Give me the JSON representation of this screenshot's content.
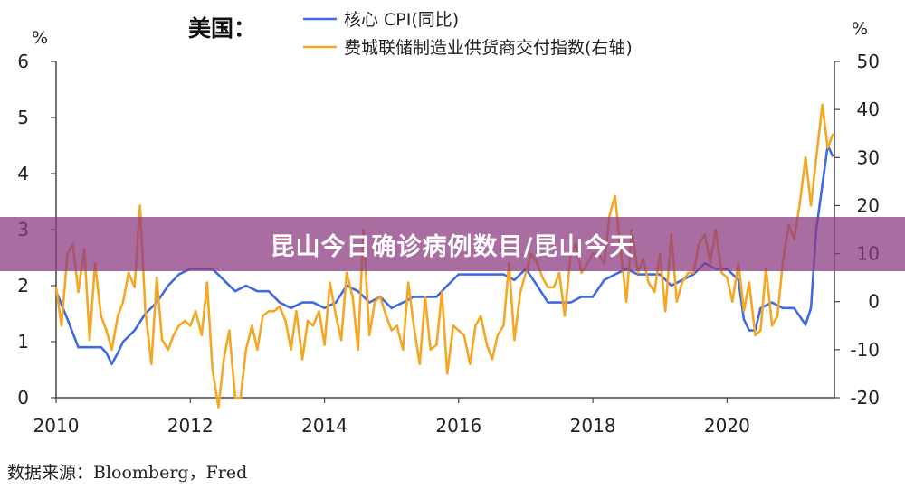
{
  "banner": {
    "title": "昆山今日确诊病例数目/昆山今天"
  },
  "source": "数据来源：Bloomberg，Fred",
  "chart_data": {
    "type": "line",
    "title": "美国：",
    "left_unit": "%",
    "right_unit": "%",
    "left_ylim": [
      0,
      6
    ],
    "left_yticks": [
      "0",
      "1",
      "2",
      "3",
      "4",
      "5",
      "6"
    ],
    "right_ylim": [
      -20,
      50
    ],
    "right_yticks": [
      "-20",
      "-10",
      "0",
      "10",
      "20",
      "30",
      "40",
      "50"
    ],
    "xlim": [
      2010,
      2021.6
    ],
    "xticks": [
      "2010",
      "2012",
      "2014",
      "2016",
      "2018",
      "2020"
    ],
    "grid": false,
    "legend_position": "top",
    "series": [
      {
        "name": "核心 CPI(同比)",
        "axis": "left",
        "color": "#4169E1",
        "x": [
          2010.0,
          2010.17,
          2010.33,
          2010.5,
          2010.67,
          2010.75,
          2010.83,
          2010.92,
          2011.0,
          2011.17,
          2011.33,
          2011.5,
          2011.67,
          2011.83,
          2012.0,
          2012.17,
          2012.33,
          2012.5,
          2012.67,
          2012.83,
          2013.0,
          2013.17,
          2013.33,
          2013.5,
          2013.67,
          2013.83,
          2014.0,
          2014.17,
          2014.33,
          2014.5,
          2014.67,
          2014.83,
          2015.0,
          2015.17,
          2015.33,
          2015.5,
          2015.67,
          2015.83,
          2016.0,
          2016.17,
          2016.33,
          2016.5,
          2016.67,
          2016.83,
          2017.0,
          2017.17,
          2017.33,
          2017.5,
          2017.67,
          2017.83,
          2018.0,
          2018.17,
          2018.33,
          2018.5,
          2018.67,
          2018.83,
          2019.0,
          2019.17,
          2019.33,
          2019.5,
          2019.67,
          2019.83,
          2020.0,
          2020.17,
          2020.25,
          2020.33,
          2020.42,
          2020.5,
          2020.67,
          2020.83,
          2021.0,
          2021.17,
          2021.25,
          2021.33,
          2021.42,
          2021.5,
          2021.58
        ],
        "values": [
          1.9,
          1.4,
          0.9,
          0.9,
          0.9,
          0.8,
          0.6,
          0.8,
          1.0,
          1.2,
          1.5,
          1.7,
          2.0,
          2.2,
          2.3,
          2.3,
          2.3,
          2.1,
          1.9,
          2.0,
          1.9,
          1.9,
          1.7,
          1.6,
          1.7,
          1.7,
          1.6,
          1.7,
          2.0,
          1.9,
          1.7,
          1.8,
          1.6,
          1.7,
          1.8,
          1.8,
          1.8,
          2.0,
          2.2,
          2.2,
          2.2,
          2.2,
          2.2,
          2.1,
          2.3,
          2.0,
          1.7,
          1.7,
          1.7,
          1.8,
          1.8,
          2.1,
          2.2,
          2.3,
          2.2,
          2.2,
          2.2,
          2.0,
          2.1,
          2.2,
          2.4,
          2.3,
          2.3,
          2.1,
          1.4,
          1.2,
          1.2,
          1.6,
          1.7,
          1.6,
          1.6,
          1.3,
          1.6,
          3.0,
          3.8,
          4.5,
          4.3
        ]
      },
      {
        "name": "费城联储制造业供货商交付指数(右轴)",
        "axis": "right",
        "color": "#F5A623",
        "x": [
          2010.0,
          2010.08,
          2010.17,
          2010.25,
          2010.33,
          2010.42,
          2010.5,
          2010.58,
          2010.67,
          2010.75,
          2010.83,
          2010.92,
          2011.0,
          2011.08,
          2011.17,
          2011.25,
          2011.33,
          2011.42,
          2011.5,
          2011.58,
          2011.67,
          2011.75,
          2011.83,
          2011.92,
          2012.0,
          2012.08,
          2012.17,
          2012.25,
          2012.33,
          2012.42,
          2012.5,
          2012.58,
          2012.67,
          2012.75,
          2012.83,
          2012.92,
          2013.0,
          2013.08,
          2013.17,
          2013.25,
          2013.33,
          2013.42,
          2013.5,
          2013.58,
          2013.67,
          2013.75,
          2013.83,
          2013.92,
          2014.0,
          2014.08,
          2014.17,
          2014.25,
          2014.33,
          2014.42,
          2014.5,
          2014.58,
          2014.67,
          2014.75,
          2014.83,
          2014.92,
          2015.0,
          2015.08,
          2015.17,
          2015.25,
          2015.33,
          2015.42,
          2015.5,
          2015.58,
          2015.67,
          2015.75,
          2015.83,
          2015.92,
          2016.0,
          2016.08,
          2016.17,
          2016.25,
          2016.33,
          2016.42,
          2016.5,
          2016.58,
          2016.67,
          2016.75,
          2016.83,
          2016.92,
          2017.0,
          2017.08,
          2017.17,
          2017.25,
          2017.33,
          2017.42,
          2017.5,
          2017.58,
          2017.67,
          2017.75,
          2017.83,
          2017.92,
          2018.0,
          2018.08,
          2018.17,
          2018.25,
          2018.33,
          2018.42,
          2018.5,
          2018.58,
          2018.67,
          2018.75,
          2018.83,
          2018.92,
          2019.0,
          2019.08,
          2019.17,
          2019.25,
          2019.33,
          2019.42,
          2019.5,
          2019.58,
          2019.67,
          2019.75,
          2019.83,
          2019.92,
          2020.0,
          2020.08,
          2020.17,
          2020.25,
          2020.33,
          2020.42,
          2020.5,
          2020.58,
          2020.67,
          2020.75,
          2020.83,
          2020.92,
          2021.0,
          2021.08,
          2021.17,
          2021.25,
          2021.33,
          2021.42,
          2021.5,
          2021.58
        ],
        "values": [
          3,
          -5,
          10,
          12,
          2,
          11,
          -8,
          8,
          -3,
          -6,
          -10,
          -3,
          0,
          6,
          3,
          20,
          -2,
          -13,
          5,
          -8,
          -10,
          -7,
          -5,
          -4,
          -5,
          -2,
          -7,
          4,
          -14,
          -22,
          -12,
          -6,
          -20,
          -20,
          -10,
          -5,
          -10,
          -3,
          -2,
          -2,
          -1,
          -4,
          -10,
          -2,
          -12,
          -4,
          -5,
          -2,
          -9,
          4,
          -3,
          -8,
          6,
          1,
          -10,
          15,
          -7,
          0,
          1,
          -3,
          -6,
          -5,
          -10,
          4,
          -5,
          -13,
          1,
          -10,
          -9,
          2,
          -15,
          -5,
          -6,
          -7,
          -13,
          -5,
          -3,
          -9,
          -12,
          -7,
          -5,
          8,
          -8,
          2,
          6,
          10,
          8,
          5,
          3,
          3,
          6,
          -3,
          10,
          12,
          6,
          8,
          10,
          10,
          8,
          18,
          22,
          10,
          0,
          15,
          6,
          9,
          4,
          2,
          10,
          -2,
          14,
          0,
          4,
          6,
          6,
          12,
          14,
          8,
          15,
          6,
          5,
          0,
          8,
          -2,
          4,
          -7,
          -6,
          7,
          -5,
          -3,
          8,
          16,
          13,
          20,
          30,
          20,
          30,
          41,
          32,
          35
        ]
      }
    ]
  }
}
